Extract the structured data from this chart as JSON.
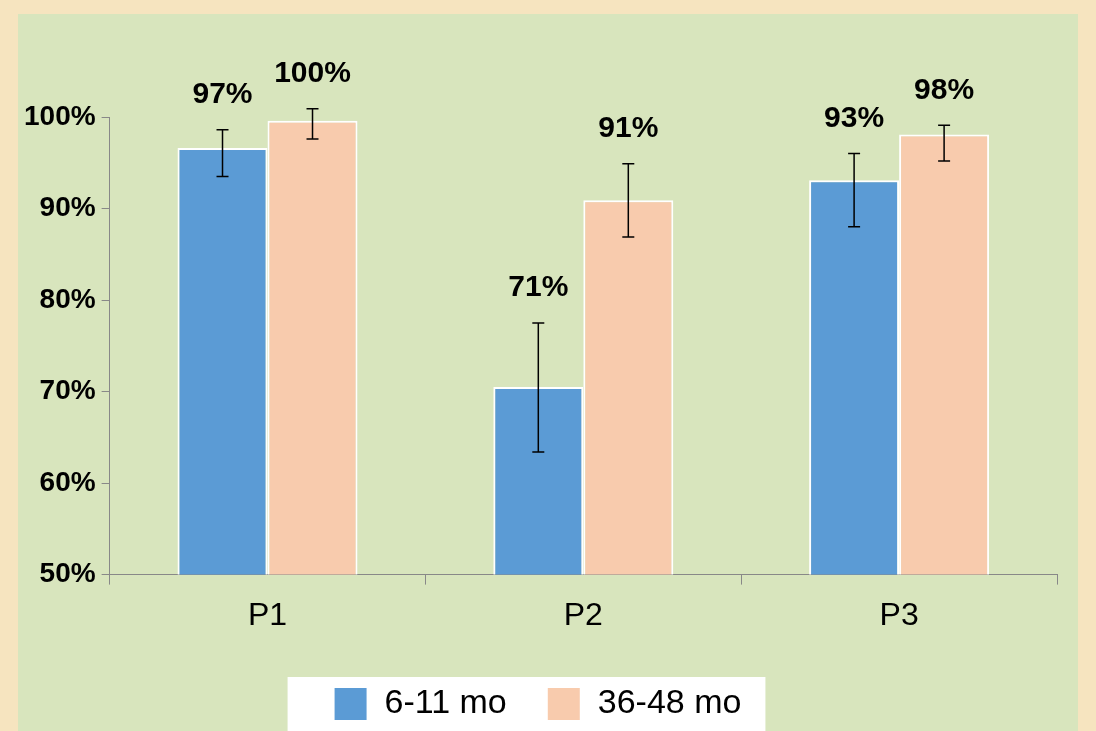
{
  "chart_data": {
    "type": "bar",
    "categories": [
      "P1",
      "P2",
      "P3"
    ],
    "series": [
      {
        "name": "6-11 mo",
        "color": "#5b9bd5",
        "values": [
          96.6,
          70.5,
          93.1
        ],
        "errors": [
          [
            93.5,
            98.6
          ],
          [
            63.4,
            77.5
          ],
          [
            88.0,
            96.0
          ]
        ],
        "value_labels": [
          "97%",
          "71%",
          "93%"
        ]
      },
      {
        "name": "36-48 mo",
        "color": "#f8cbad",
        "values": [
          99.6,
          90.9,
          98.1
        ],
        "errors": [
          [
            97.6,
            100.9
          ],
          [
            86.9,
            94.9
          ],
          [
            95.2,
            99.1
          ]
        ],
        "value_labels": [
          "100%",
          "91%",
          "98%"
        ]
      }
    ],
    "ylim": [
      50,
      100
    ],
    "yticks": [
      {
        "value": 50,
        "label": "50%"
      },
      {
        "value": 60,
        "label": "60%"
      },
      {
        "value": 70,
        "label": "70%"
      },
      {
        "value": 80,
        "label": "80%"
      },
      {
        "value": 90,
        "label": "90%"
      },
      {
        "value": 100,
        "label": "100%"
      }
    ],
    "legend": "bottom"
  }
}
